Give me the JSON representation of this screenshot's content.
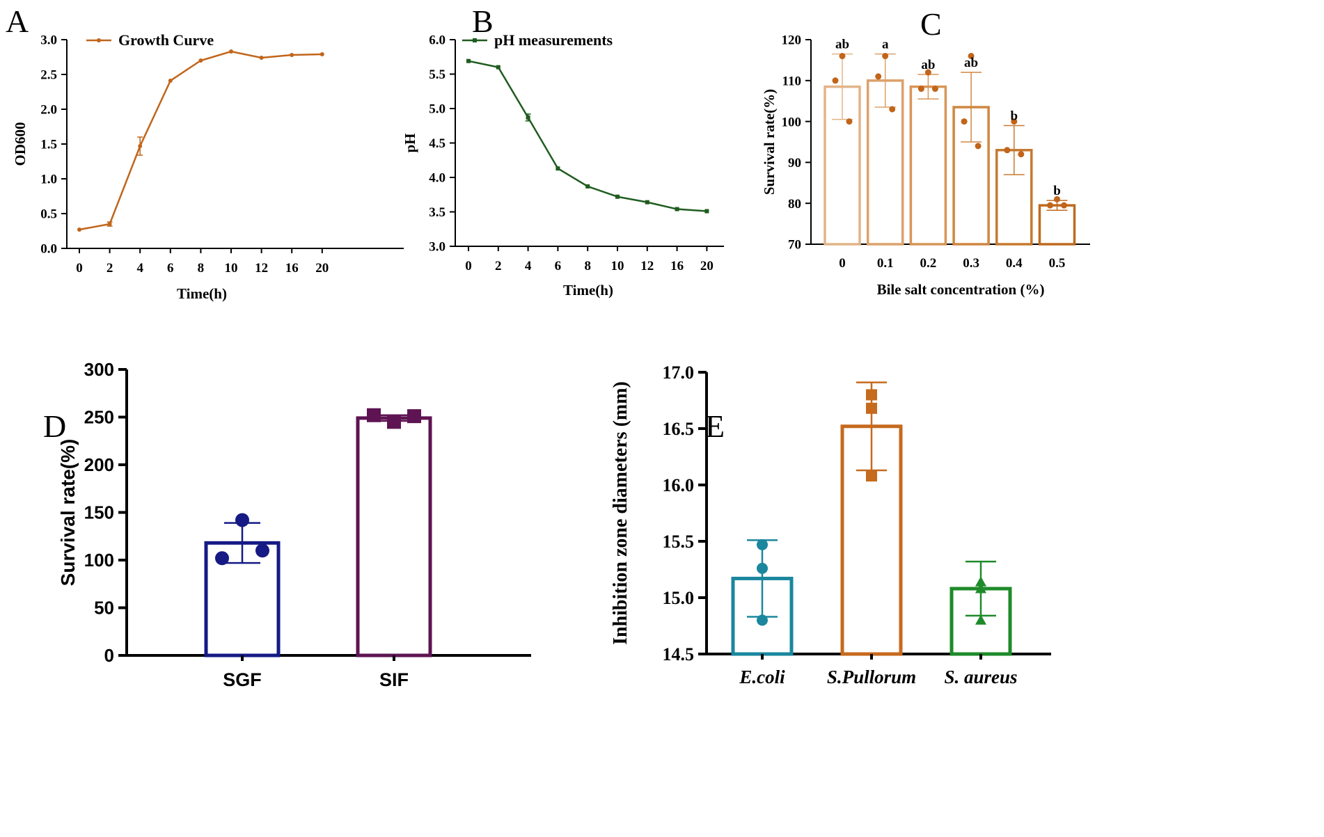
{
  "panel_labels": [
    "A",
    "B",
    "C",
    "D",
    "E"
  ],
  "chart_data": [
    {
      "id": "A",
      "type": "line",
      "title": "",
      "legend": "Growth Curve",
      "legend_placement": "top-left",
      "xlabel": "Time(h)",
      "ylabel": "OD600",
      "categories": [
        "0",
        "2",
        "4",
        "6",
        "8",
        "10",
        "12",
        "16",
        "20"
      ],
      "values": [
        0.27,
        0.35,
        1.47,
        2.41,
        2.7,
        2.83,
        2.74,
        2.78,
        2.79
      ],
      "errors": [
        0.01,
        0.03,
        0.13,
        0.01,
        0.01,
        0.01,
        0.01,
        0.01,
        0.01
      ],
      "ylim": [
        0,
        3.0
      ],
      "yticks": [
        "0.0",
        "0.5",
        "1.0",
        "1.5",
        "2.0",
        "2.5",
        "3.0"
      ],
      "color": "#c0651b"
    },
    {
      "id": "B",
      "type": "line",
      "title": "",
      "legend": "pH measurements",
      "legend_placement": "top-left",
      "xlabel": "Time(h)",
      "ylabel": "pH",
      "categories": [
        "0",
        "2",
        "4",
        "6",
        "8",
        "10",
        "12",
        "16",
        "20"
      ],
      "values": [
        5.69,
        5.6,
        4.87,
        4.13,
        3.87,
        3.72,
        3.64,
        3.54,
        3.51
      ],
      "errors": [
        0.01,
        0.01,
        0.05,
        0.02,
        0.01,
        0.01,
        0.01,
        0.01,
        0.01
      ],
      "ylim": [
        3.0,
        6.0
      ],
      "yticks": [
        "3.0",
        "3.5",
        "4.0",
        "4.5",
        "5.0",
        "5.5",
        "6.0"
      ],
      "color": "#1f5c1f"
    },
    {
      "id": "C",
      "type": "bar",
      "xlabel": "Bile salt concentration (%)",
      "ylabel": "Survival rate(%)",
      "categories": [
        "0",
        "0.1",
        "0.2",
        "0.3",
        "0.4",
        "0.5"
      ],
      "values": [
        108.5,
        110,
        108.5,
        103.5,
        93,
        79.5
      ],
      "errors": [
        8,
        6.5,
        3,
        8.5,
        6,
        1.2
      ],
      "points": [
        [
          116,
          110,
          100
        ],
        [
          116,
          111,
          103
        ],
        [
          112,
          108,
          108
        ],
        [
          116,
          100,
          94
        ],
        [
          100,
          93,
          92
        ],
        [
          81,
          79.5,
          79.5
        ]
      ],
      "letters": [
        "ab",
        "a",
        "ab",
        "ab",
        "b",
        "b"
      ],
      "ylim": [
        70,
        120
      ],
      "yticks": [
        "70",
        "80",
        "90",
        "100",
        "110",
        "120"
      ],
      "colors": [
        "#e2b488",
        "#dca16b",
        "#d89558",
        "#cf8740",
        "#c6792f",
        "#bf6a20"
      ],
      "point_color": "#c0651b"
    },
    {
      "id": "D",
      "type": "bar",
      "xlabel": "",
      "ylabel": "Survival rate(%)",
      "categories": [
        "SGF",
        "SIF"
      ],
      "values": [
        118,
        249
      ],
      "errors": [
        21,
        3
      ],
      "points": [
        [
          142,
          102,
          110
        ],
        [
          245,
          252,
          251
        ]
      ],
      "markers": [
        "circle",
        "square"
      ],
      "ylim": [
        0,
        300
      ],
      "yticks": [
        "0",
        "50",
        "100",
        "150",
        "200",
        "250",
        "300"
      ],
      "colors": [
        "#151a84",
        "#5e1452"
      ]
    },
    {
      "id": "E",
      "type": "bar",
      "xlabel": "",
      "ylabel": "Inhibition zone diameters (mm)",
      "categories": [
        "E.coli",
        "S.Pullorum",
        "S. aureus"
      ],
      "values": [
        15.17,
        16.52,
        15.08
      ],
      "errors": [
        0.34,
        0.39,
        0.24
      ],
      "points": [
        [
          15.47,
          15.26,
          14.8
        ],
        [
          16.8,
          16.68,
          16.08
        ],
        [
          15.14,
          15.08,
          14.8
        ]
      ],
      "markers": [
        "circle",
        "square",
        "triangle"
      ],
      "ylim": [
        14.5,
        17.0
      ],
      "yticks": [
        "14.5",
        "15.0",
        "15.5",
        "16.0",
        "16.5",
        "17.0"
      ],
      "colors": [
        "#1a879e",
        "#c66a1e",
        "#1e8a2a"
      ]
    }
  ]
}
